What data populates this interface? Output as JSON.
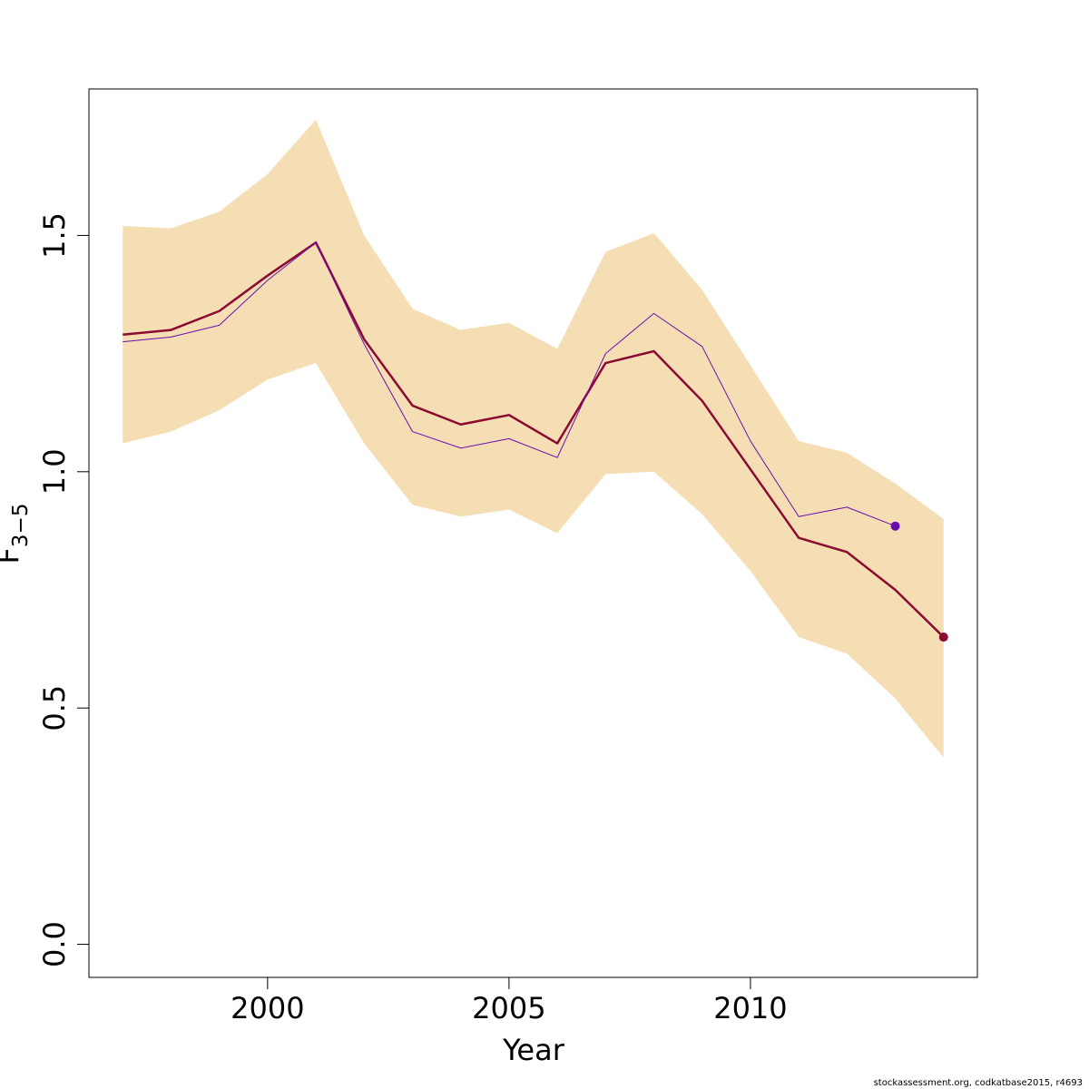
{
  "chart_data": {
    "type": "line",
    "xlabel": "Year",
    "ylabel_main": "F",
    "ylabel_sub": "3−5",
    "xlim": [
      1996.3,
      2014.7
    ],
    "ylim": [
      -0.07,
      1.81
    ],
    "x_ticks": [
      2000,
      2005,
      2010
    ],
    "x_tick_labels": [
      "2000",
      "2005",
      "2010"
    ],
    "y_ticks": [
      0.0,
      0.5,
      1.0,
      1.5
    ],
    "y_tick_labels": [
      "0.0",
      "0.5",
      "1.0",
      "1.5"
    ],
    "grid": false,
    "band": {
      "x": [
        1997,
        1998,
        1999,
        2000,
        2001,
        2002,
        2003,
        2004,
        2005,
        2006,
        2007,
        2008,
        2009,
        2010,
        2011,
        2012,
        2013,
        2014
      ],
      "lower": [
        1.06,
        1.085,
        1.13,
        1.195,
        1.23,
        1.06,
        0.93,
        0.905,
        0.92,
        0.87,
        0.995,
        1.0,
        0.91,
        0.79,
        0.65,
        0.615,
        0.52,
        0.395
      ],
      "upper": [
        1.52,
        1.515,
        1.55,
        1.63,
        1.745,
        1.5,
        1.345,
        1.3,
        1.315,
        1.26,
        1.465,
        1.505,
        1.385,
        1.225,
        1.065,
        1.04,
        0.975,
        0.9
      ],
      "color": "#F5DEB3"
    },
    "series": [
      {
        "x": [
          1997,
          1998,
          1999,
          2000,
          2001,
          2002,
          2003,
          2004,
          2005,
          2006,
          2007,
          2008,
          2009,
          2010,
          2011,
          2012,
          2013,
          2014
        ],
        "values": [
          1.29,
          1.3,
          1.34,
          1.415,
          1.485,
          1.28,
          1.14,
          1.1,
          1.12,
          1.06,
          1.23,
          1.255,
          1.15,
          1.005,
          0.86,
          0.83,
          0.75,
          0.65
        ],
        "color": "#8B0A32",
        "width": 2.5,
        "end_point": true
      },
      {
        "x": [
          1997,
          1998,
          1999,
          2000,
          2001,
          2002,
          2003,
          2004,
          2005,
          2006,
          2007,
          2008,
          2009,
          2010,
          2011,
          2012,
          2013
        ],
        "values": [
          1.275,
          1.285,
          1.31,
          1.405,
          1.485,
          1.27,
          1.085,
          1.05,
          1.07,
          1.03,
          1.25,
          1.335,
          1.265,
          1.065,
          0.905,
          0.925,
          0.885
        ],
        "color": "#6A0DAD",
        "width": 1,
        "end_point": true
      }
    ]
  },
  "footer": "stockassessment.org, codkatbase2015, r4693"
}
